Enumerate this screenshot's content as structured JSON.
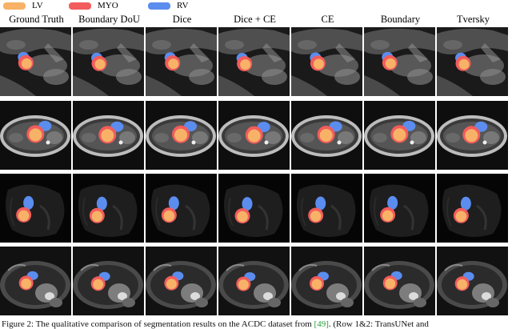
{
  "legend": {
    "items": [
      {
        "label": "LV",
        "color": "#f7b267"
      },
      {
        "label": "MYO",
        "color": "#f25c5c"
      },
      {
        "label": "RV",
        "color": "#5b8def"
      }
    ]
  },
  "columns": [
    "Ground Truth",
    "Boundary DoU",
    "Dice",
    "Dice + CE",
    "CE",
    "Boundary",
    "Tversky"
  ],
  "caption": {
    "text": "Figure 2: The qualitative comparison of segmentation results on the ACDC dataset from",
    "ref": "[49]",
    "tail": ". (Row 1&2: TransUNet and"
  }
}
